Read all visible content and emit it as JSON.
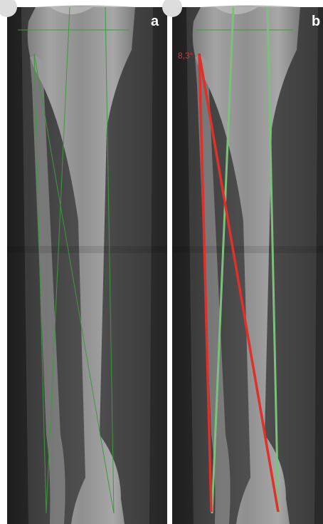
{
  "panels": [
    {
      "label": "a"
    },
    {
      "label": "b",
      "annotation": "8,3°"
    }
  ]
}
